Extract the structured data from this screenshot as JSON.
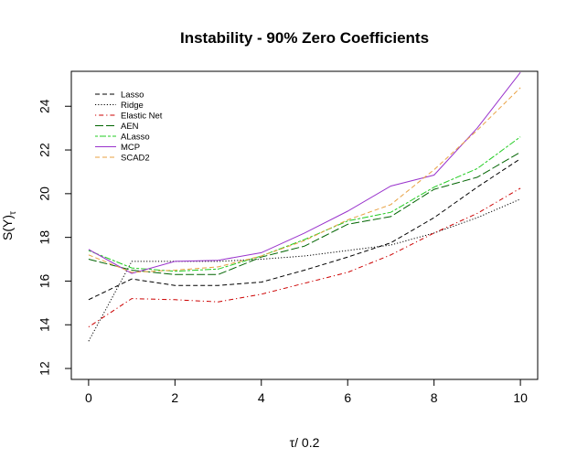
{
  "chart_data": {
    "type": "line",
    "title": "Instability - 90% Zero Coefficients",
    "xlabel": "τ/ 0.2",
    "ylabel_main": "S(Y)",
    "ylabel_sub": "τ",
    "xlim": [
      -0.4,
      10.4
    ],
    "ylim": [
      11.5,
      25.6
    ],
    "xticks": [
      0,
      2,
      4,
      6,
      8,
      10
    ],
    "yticks": [
      12,
      14,
      16,
      18,
      20,
      22,
      24
    ],
    "x": [
      0,
      1,
      2,
      3,
      4,
      5,
      6,
      7,
      8,
      9,
      10
    ],
    "legend_position": "top-left",
    "series": [
      {
        "name": "Lasso",
        "color": "#000000",
        "dash": "dashed",
        "values": [
          15.15,
          16.1,
          15.8,
          15.8,
          15.95,
          16.5,
          17.1,
          17.75,
          18.9,
          20.3,
          21.6
        ]
      },
      {
        "name": "Ridge",
        "color": "#000000",
        "dash": "dotted",
        "values": [
          13.25,
          16.9,
          16.9,
          16.9,
          17.0,
          17.15,
          17.4,
          17.65,
          18.2,
          18.9,
          19.75
        ]
      },
      {
        "name": "Elastic Net",
        "color": "#cc0000",
        "dash": "dotdash",
        "values": [
          13.9,
          15.2,
          15.15,
          15.05,
          15.4,
          15.9,
          16.4,
          17.2,
          18.2,
          19.1,
          20.25
        ]
      },
      {
        "name": "AEN",
        "color": "#006400",
        "dash": "longdash",
        "values": [
          17.0,
          16.5,
          16.3,
          16.3,
          17.1,
          17.6,
          18.6,
          18.95,
          20.2,
          20.75,
          21.9
        ]
      },
      {
        "name": "ALasso",
        "color": "#22cc22",
        "dash": "twodash",
        "values": [
          17.4,
          16.6,
          16.45,
          16.55,
          17.15,
          17.9,
          18.75,
          19.15,
          20.3,
          21.15,
          22.6
        ]
      },
      {
        "name": "MCP",
        "color": "#9933cc",
        "dash": "solid",
        "values": [
          17.45,
          16.35,
          16.9,
          16.95,
          17.3,
          18.2,
          19.2,
          20.35,
          20.85,
          23.0,
          25.55
        ]
      },
      {
        "name": "SCAD2",
        "color": "#e8a040",
        "dash": "dashed",
        "values": [
          17.2,
          16.4,
          16.5,
          16.65,
          17.15,
          17.85,
          18.8,
          19.5,
          21.1,
          22.9,
          24.85
        ]
      }
    ]
  }
}
